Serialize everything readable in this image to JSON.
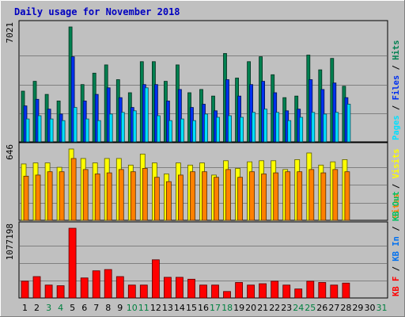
{
  "chart_data": {
    "type": "bar",
    "title": "Daily usage for November 2018",
    "colors": {
      "frame_bg": "#c0c0c0",
      "plot_bg": "#c0c0c0",
      "grid": "#808080",
      "hits": "#008050",
      "files": "#0030f0",
      "pages": "#00e0ff",
      "visits": "#ffff00",
      "sites": "#ff8000",
      "kbin": "#0070f0",
      "kbout": "#00c060",
      "kbf": "#ff0000",
      "weekday_label": "#000000",
      "weekend_label": "#008040"
    },
    "days": [
      "1",
      "2",
      "3",
      "4",
      "5",
      "6",
      "7",
      "8",
      "9",
      "10",
      "11",
      "12",
      "13",
      "14",
      "15",
      "16",
      "17",
      "18",
      "19",
      "20",
      "21",
      "22",
      "23",
      "24",
      "25",
      "26",
      "27",
      "28",
      "29",
      "30",
      "31"
    ],
    "weekend_days": [
      "3",
      "4",
      "10",
      "11",
      "17",
      "18",
      "24",
      "25",
      "31"
    ],
    "panels": [
      {
        "ymax_label": "7021",
        "ymax": 7021,
        "legend": [
          {
            "text": "Pages",
            "color": "#00e0ff"
          },
          {
            "text": " / ",
            "color": "#000000"
          },
          {
            "text": "Files",
            "color": "#0030f0"
          },
          {
            "text": " / ",
            "color": "#000000"
          },
          {
            "text": "Hits",
            "color": "#008050"
          }
        ],
        "series": [
          {
            "name": "Hits",
            "color": "#008050",
            "values": [
              3100,
              3700,
              2900,
              2500,
              7021,
              3500,
              4200,
              4700,
              3800,
              3000,
              4900,
              4900,
              3700,
              4700,
              3000,
              3200,
              2800,
              5400,
              3900,
              4900,
              5200,
              4100,
              2700,
              2800,
              5300,
              4400,
              5100,
              3400,
              0,
              0,
              0
            ]
          },
          {
            "name": "Files",
            "color": "#0030f0",
            "values": [
              2200,
              2600,
              2000,
              1700,
              5200,
              2500,
              2900,
              3300,
              2700,
              2100,
              3500,
              3500,
              2500,
              3200,
              2100,
              2300,
              1900,
              3800,
              2800,
              3500,
              3700,
              3000,
              1900,
              2000,
              3800,
              3200,
              3600,
              2700,
              0,
              0,
              0
            ]
          },
          {
            "name": "Pages",
            "color": "#00e0ff",
            "values": [
              1400,
              1600,
              1400,
              1300,
              2100,
              1400,
              1300,
              1700,
              1800,
              1900,
              3300,
              1600,
              1300,
              1400,
              1300,
              1700,
              1500,
              1600,
              1500,
              1800,
              2000,
              1800,
              1300,
              1500,
              1800,
              1700,
              1800,
              2300,
              0,
              0,
              0
            ]
          }
        ]
      },
      {
        "ymax_label": "646",
        "ymax": 646,
        "legend": [
          {
            "text": "Sites",
            "color": "#ff8000"
          },
          {
            "text": " / ",
            "color": "#000000"
          },
          {
            "text": "Visits",
            "color": "#ffff00"
          }
        ],
        "series": [
          {
            "name": "Visits",
            "color": "#ffff00",
            "values": [
              510,
              520,
              520,
              480,
              646,
              560,
              520,
              560,
              560,
              500,
              600,
              520,
              420,
              520,
              500,
              520,
              410,
              540,
              470,
              530,
              540,
              540,
              460,
              550,
              610,
              500,
              530,
              550,
              0,
              0,
              0
            ]
          },
          {
            "name": "Sites",
            "color": "#ff8000",
            "values": [
              400,
              410,
              440,
              440,
              560,
              460,
              420,
              430,
              460,
              440,
              470,
              390,
              350,
              410,
              440,
              440,
              390,
              460,
              390,
              440,
              420,
              430,
              440,
              440,
              460,
              430,
              460,
              440,
              0,
              0,
              0
            ]
          }
        ]
      },
      {
        "ymax_label": "1077198",
        "ymax": 1077198,
        "legend": [
          {
            "text": "KB F",
            "color": "#ff0000"
          },
          {
            "text": " / ",
            "color": "#000000"
          },
          {
            "text": "KB In",
            "color": "#0070f0"
          },
          {
            "text": " / ",
            "color": "#000000"
          },
          {
            "text": "KB Out",
            "color": "#00c060"
          }
        ],
        "series": [
          {
            "name": "KB F",
            "color": "#ff0000",
            "values": [
              260000,
              330000,
              200000,
              190000,
              1077198,
              310000,
              420000,
              440000,
              330000,
              200000,
              200000,
              590000,
              320000,
              320000,
              290000,
              200000,
              200000,
              100000,
              240000,
              200000,
              220000,
              260000,
              200000,
              140000,
              260000,
              240000,
              200000,
              230000,
              0,
              0,
              0
            ]
          }
        ]
      }
    ]
  }
}
